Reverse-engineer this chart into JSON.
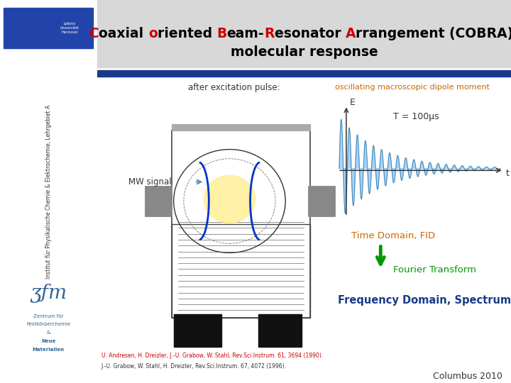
{
  "title_line1_parts": [
    [
      "C",
      "#cc0000"
    ],
    [
      "oaxial ",
      "#000000"
    ],
    [
      "o",
      "#cc0000"
    ],
    [
      "riented ",
      "#000000"
    ],
    [
      "B",
      "#cc0000"
    ],
    [
      "eam-",
      "#000000"
    ],
    [
      "R",
      "#cc0000"
    ],
    [
      "esonator ",
      "#000000"
    ],
    [
      "A",
      "#cc0000"
    ],
    [
      "rrangement (COBRA):",
      "#000000"
    ]
  ],
  "subtitle": "molecular response",
  "sidebar_text": "Institut für Physikalische Chemie & Elektrochemie, Lehrgebiet A",
  "sidebar_bg": "#c8c8c8",
  "main_bg": "#ffffff",
  "header_bg": "#d8d8d8",
  "blue_bar_color": "#1a3a8a",
  "after_excitation_text": "after excitation pulse:",
  "after_excitation_color": "#333333",
  "oscillating_text": "oscillating macroscopic dipole moment",
  "oscillating_color": "#cc6600",
  "mw_signal_text": "MW signal",
  "mw_signal_color": "#333333",
  "t_label": "t",
  "e_label": "E",
  "T_label": "T = 100μs",
  "T_label_color": "#333333",
  "time_domain_text": "Time Domain, FID",
  "time_domain_color": "#cc6600",
  "fourier_text": "Fourier Transform",
  "fourier_color": "#009900",
  "freq_domain_text": "Frequency Domain, Spectrum",
  "freq_domain_color": "#1a3a8a",
  "arrow_color": "#009900",
  "ref1": "U. Andresen, H. Dreizler, J.-U. Grabow, W. Stahl, Rev.Sci.Instrum. 61, 3694 (1990).",
  "ref2": "J.-U. Grabow, W. Stahl, H. Dreizler, Rev.Sci.Instrum. 67, 4072 (1996).",
  "ref1_color": "#cc0000",
  "ref2_color": "#333333",
  "year_text": "Columbus 2010",
  "year_color": "#333333",
  "logo_text_lines": [
    "Zentrum für",
    "Festkörperchemie",
    "&",
    "Neue",
    "Materialien"
  ],
  "logo_bold": [
    false,
    false,
    false,
    true,
    true
  ],
  "logo_color": "#336699",
  "wave_color": "#99ccff",
  "sidebar_logo_bg": "#2244aa"
}
